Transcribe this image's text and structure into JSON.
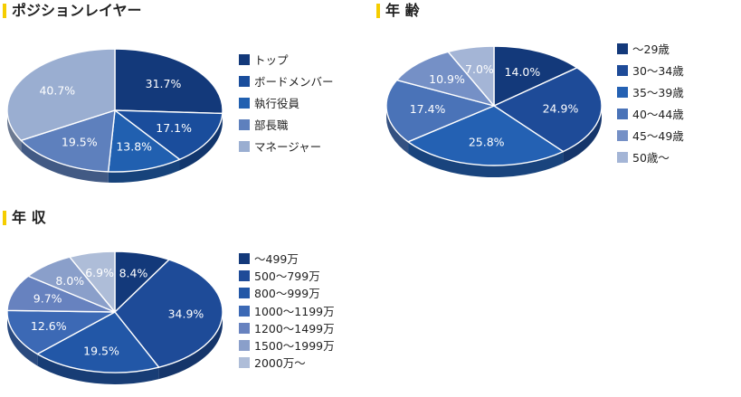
{
  "chart_data": [
    {
      "type": "pie",
      "title": "ポジションレイヤー",
      "slices": [
        {
          "label": "トップ",
          "value": 31.7,
          "text": "31.7%",
          "color": "#13397a"
        },
        {
          "label": "ボードメンバー",
          "value": 17.1,
          "text": "17.1%",
          "color": "#1a4d9c"
        },
        {
          "label": "執行役員",
          "value": 13.8,
          "text": "13.8%",
          "color": "#2160b0"
        },
        {
          "label": "部長職",
          "value": 19.5,
          "text": "19.5%",
          "color": "#5e80bd"
        },
        {
          "label": "マネージャー",
          "value": 40.7,
          "text": "40.7%",
          "color": "#9aaed1"
        }
      ]
    },
    {
      "type": "pie",
      "title": "年 齢",
      "slices": [
        {
          "label": "～29歳",
          "value": 14.0,
          "text": "14.0%",
          "color": "#13397a"
        },
        {
          "label": "30～34歳",
          "value": 24.9,
          "text": "24.9%",
          "color": "#1e4b98"
        },
        {
          "label": "35～39歳",
          "value": 25.8,
          "text": "25.8%",
          "color": "#2461b3"
        },
        {
          "label": "40～44歳",
          "value": 17.4,
          "text": "17.4%",
          "color": "#4a73b8"
        },
        {
          "label": "45～49歳",
          "value": 10.9,
          "text": "10.9%",
          "color": "#7590c6"
        },
        {
          "label": "50歳～",
          "value": 7.0,
          "text": "7.0%",
          "color": "#a4b5d6"
        }
      ]
    },
    {
      "type": "pie",
      "title": "年 収",
      "slices": [
        {
          "label": "～499万",
          "value": 8.4,
          "text": "8.4%",
          "color": "#13397a"
        },
        {
          "label": "500～799万",
          "value": 34.9,
          "text": "34.9%",
          "color": "#1e4b98"
        },
        {
          "label": "800～999万",
          "value": 19.5,
          "text": "19.5%",
          "color": "#2257a7"
        },
        {
          "label": "1000～1199万",
          "value": 12.6,
          "text": "12.6%",
          "color": "#3c69b5"
        },
        {
          "label": "1200～1499万",
          "value": 9.7,
          "text": "9.7%",
          "color": "#6782bf"
        },
        {
          "label": "1500～1999万",
          "value": 8.0,
          "text": "8.0%",
          "color": "#8a9fca"
        },
        {
          "label": "2000万～",
          "value": 6.9,
          "text": "6.9%",
          "color": "#aebdd8"
        }
      ]
    }
  ]
}
